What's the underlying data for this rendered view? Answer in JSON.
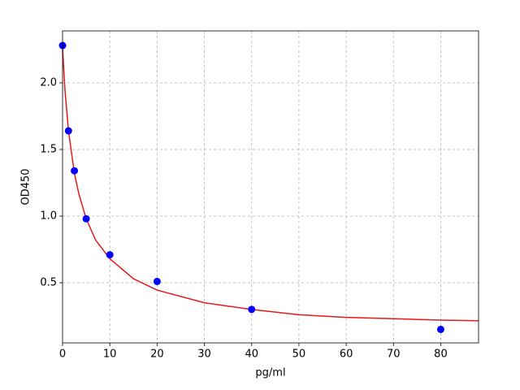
{
  "chart_data": {
    "type": "scatter",
    "x_label": "pg/ml",
    "y_label": "OD450",
    "xlim": [
      0,
      88
    ],
    "ylim": [
      0.049,
      2.39
    ],
    "xticks": [
      0,
      10,
      20,
      30,
      40,
      50,
      60,
      70,
      80
    ],
    "yticks": [
      {
        "value": 0.5,
        "label": "0.5"
      },
      {
        "value": 1,
        "label": "1.0"
      },
      {
        "value": 1.5,
        "label": "1.5"
      },
      {
        "value": 2,
        "label": "2.0"
      }
    ],
    "grid": true,
    "points": {
      "color": "#0000ff",
      "x": [
        0,
        1.25,
        2.5,
        5,
        10,
        20,
        40,
        80
      ],
      "values": [
        2.28,
        1.64,
        1.34,
        0.98,
        0.71,
        0.51,
        0.3,
        0.15
      ]
    },
    "curve": {
      "color": "#e41a1c",
      "x": [
        0,
        0.5,
        1.25,
        2.5,
        3.5,
        5,
        7,
        10,
        15,
        20,
        30,
        40,
        50,
        60,
        70,
        80,
        88
      ],
      "values": [
        2.26,
        1.95,
        1.64,
        1.32,
        1.16,
        0.98,
        0.82,
        0.68,
        0.53,
        0.445,
        0.35,
        0.3,
        0.26,
        0.24,
        0.23,
        0.22,
        0.215
      ]
    }
  }
}
